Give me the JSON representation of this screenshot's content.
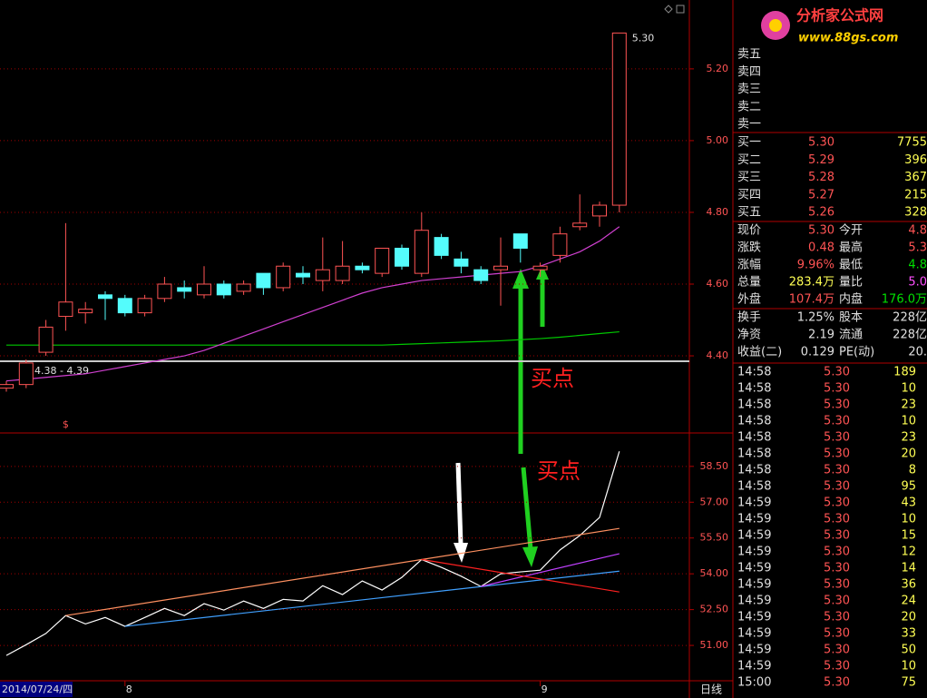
{
  "chart_data": [
    {
      "type": "candlestick",
      "ylim": [
        4.185,
        5.392
      ],
      "yticks": [
        {
          "value": 4.4,
          "label": "4.40"
        },
        {
          "value": 4.6,
          "label": "4.60"
        },
        {
          "value": 4.8,
          "label": "4.80"
        },
        {
          "value": 5.0,
          "label": "5.00"
        },
        {
          "value": 5.2,
          "label": "5.20"
        }
      ],
      "grid": true,
      "up_color": "#ff5454",
      "down_color": "#54fcfc",
      "open": [
        4.31,
        4.32,
        4.41,
        4.51,
        4.52,
        4.57,
        4.56,
        4.52,
        4.56,
        4.59,
        4.57,
        4.6,
        4.58,
        4.63,
        4.59,
        4.63,
        4.61,
        4.61,
        4.65,
        4.63,
        4.7,
        4.63,
        4.73,
        4.67,
        4.64,
        4.64,
        4.74,
        4.64,
        4.68,
        4.76,
        4.79,
        4.82
      ],
      "high": [
        4.33,
        4.39,
        4.5,
        4.77,
        4.55,
        4.58,
        4.57,
        4.57,
        4.62,
        4.61,
        4.65,
        4.61,
        4.61,
        4.63,
        4.66,
        4.65,
        4.73,
        4.72,
        4.66,
        4.7,
        4.71,
        4.8,
        4.74,
        4.69,
        4.65,
        4.73,
        4.74,
        4.66,
        4.76,
        4.85,
        4.83,
        5.3
      ],
      "low": [
        4.3,
        4.31,
        4.4,
        4.47,
        4.49,
        4.5,
        4.51,
        4.51,
        4.55,
        4.56,
        4.56,
        4.56,
        4.57,
        4.57,
        4.58,
        4.6,
        4.58,
        4.6,
        4.63,
        4.62,
        4.64,
        4.62,
        4.67,
        4.63,
        4.6,
        4.54,
        4.66,
        4.62,
        4.66,
        4.75,
        4.76,
        4.8
      ],
      "close": [
        4.32,
        4.38,
        4.48,
        4.55,
        4.53,
        4.56,
        4.52,
        4.56,
        4.6,
        4.58,
        4.6,
        4.57,
        4.6,
        4.59,
        4.65,
        4.62,
        4.64,
        4.65,
        4.64,
        4.7,
        4.65,
        4.75,
        4.68,
        4.65,
        4.61,
        4.65,
        4.7,
        4.65,
        4.74,
        4.77,
        4.82,
        5.3
      ],
      "series": [
        {
          "color": "#00c800",
          "values": [
            4.43,
            4.43,
            4.43,
            4.43,
            4.43,
            4.43,
            4.43,
            4.43,
            4.43,
            4.43,
            4.43,
            4.43,
            4.43,
            4.43,
            4.43,
            4.43,
            4.43,
            4.43,
            4.43,
            4.43,
            4.432,
            4.434,
            4.436,
            4.438,
            4.44,
            4.442,
            4.445,
            4.448,
            4.452,
            4.457,
            4.462,
            4.467
          ]
        },
        {
          "color": "#d040d0",
          "values": [
            4.33,
            4.335,
            4.34,
            4.345,
            4.35,
            4.36,
            4.37,
            4.38,
            4.39,
            4.4,
            4.415,
            4.435,
            4.455,
            4.475,
            4.495,
            4.515,
            4.535,
            4.555,
            4.575,
            4.59,
            4.6,
            4.61,
            4.615,
            4.62,
            4.625,
            4.63,
            4.635,
            4.65,
            4.67,
            4.69,
            4.72,
            4.76
          ]
        }
      ],
      "hline": {
        "value": 4.385,
        "label": "4.38 - 4.39"
      },
      "max_label": "5.30",
      "marker": "$",
      "annotation": "买点"
    },
    {
      "type": "line",
      "ylim": [
        49.52,
        59.9
      ],
      "yticks": [
        {
          "value": 51,
          "label": "51.00"
        },
        {
          "value": 52.5,
          "label": "52.50"
        },
        {
          "value": 54,
          "label": "54.00"
        },
        {
          "value": 55.5,
          "label": "55.50"
        },
        {
          "value": 57,
          "label": "57.00"
        },
        {
          "value": 58.5,
          "label": "58.50"
        }
      ],
      "grid": true,
      "categories": [
        "2014/07/24/四",
        null,
        null,
        null,
        null,
        null,
        "8",
        null,
        null,
        null,
        null,
        null,
        null,
        null,
        null,
        null,
        null,
        null,
        null,
        null,
        null,
        null,
        null,
        null,
        null,
        null,
        null,
        "9",
        null,
        null,
        null,
        null
      ],
      "series": [
        {
          "color": "#ffffff",
          "values": [
            50.58,
            51.03,
            51.5,
            52.25,
            51.9,
            52.17,
            51.8,
            52.17,
            52.55,
            52.25,
            52.75,
            52.48,
            52.86,
            52.55,
            52.93,
            52.86,
            53.5,
            53.13,
            53.7,
            53.32,
            53.85,
            54.6,
            54.27,
            53.9,
            53.47,
            54.0,
            54.08,
            54.15,
            55.0,
            55.6,
            56.36,
            59.13
          ]
        }
      ],
      "trendlines": [
        {
          "color": "#ff9060",
          "x": [
            3,
            31
          ],
          "values": [
            52.25,
            55.9
          ]
        },
        {
          "color": "#40a0ff",
          "x": [
            6,
            31
          ],
          "values": [
            51.8,
            54.11
          ]
        },
        {
          "color": "#c040ff",
          "x": [
            24,
            31
          ],
          "values": [
            53.47,
            54.84
          ]
        },
        {
          "color": "#ff2020",
          "x": [
            21,
            31
          ],
          "values": [
            54.6,
            53.24
          ]
        }
      ],
      "annotation": "买点",
      "period": "日线"
    }
  ],
  "quote": {
    "logo": "分析家公式网",
    "logo_url": "www.88gs.com",
    "ask_labels": [
      "卖五",
      "卖四",
      "卖三",
      "卖二",
      "卖一"
    ],
    "bids": [
      [
        "买一",
        "5.30",
        "7755"
      ],
      [
        "买二",
        "5.29",
        "396"
      ],
      [
        "买三",
        "5.28",
        "367"
      ],
      [
        "买四",
        "5.27",
        "215"
      ],
      [
        "买五",
        "5.26",
        "328"
      ]
    ],
    "stats": [
      [
        "现价",
        "5.30",
        "今开",
        "4.8"
      ],
      [
        "涨跌",
        "0.48",
        "最高",
        "5.3"
      ],
      [
        "涨幅",
        "9.96%",
        "最低",
        "4.8"
      ],
      [
        "总量",
        "283.4万",
        "量比",
        "5.0"
      ],
      [
        "外盘",
        "107.4万",
        "内盘",
        "176.0万"
      ]
    ],
    "stats2": [
      [
        "换手",
        "1.25%",
        "股本",
        "228亿"
      ],
      [
        "净资",
        "2.19",
        "流通",
        "228亿"
      ],
      [
        "收益(二)",
        "0.129",
        "PE(动)",
        "20."
      ]
    ],
    "ticks": [
      [
        "14:58",
        "5.30",
        "189"
      ],
      [
        "14:58",
        "5.30",
        "10"
      ],
      [
        "14:58",
        "5.30",
        "23"
      ],
      [
        "14:58",
        "5.30",
        "10"
      ],
      [
        "14:58",
        "5.30",
        "23"
      ],
      [
        "14:58",
        "5.30",
        "20"
      ],
      [
        "14:58",
        "5.30",
        "8"
      ],
      [
        "14:58",
        "5.30",
        "95"
      ],
      [
        "14:59",
        "5.30",
        "43"
      ],
      [
        "14:59",
        "5.30",
        "10"
      ],
      [
        "14:59",
        "5.30",
        "15"
      ],
      [
        "14:59",
        "5.30",
        "12"
      ],
      [
        "14:59",
        "5.30",
        "14"
      ],
      [
        "14:59",
        "5.30",
        "36"
      ],
      [
        "14:59",
        "5.30",
        "24"
      ],
      [
        "14:59",
        "5.30",
        "20"
      ],
      [
        "14:59",
        "5.30",
        "33"
      ],
      [
        "14:59",
        "5.30",
        "50"
      ],
      [
        "14:59",
        "5.30",
        "10"
      ],
      [
        "15:00",
        "5.30",
        "75"
      ]
    ]
  }
}
